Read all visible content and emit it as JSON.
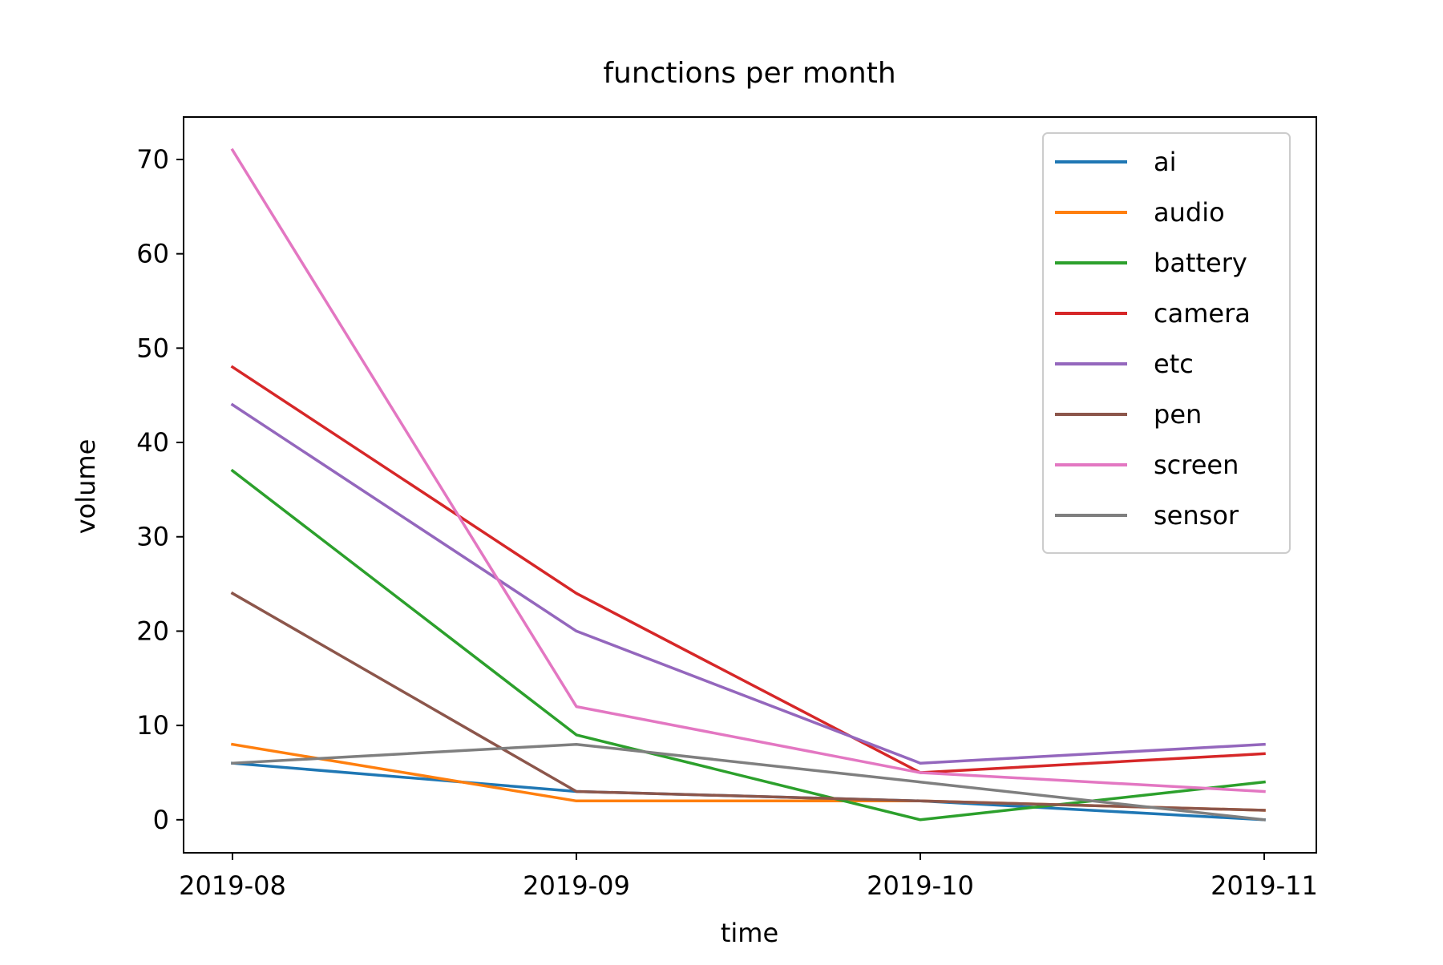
{
  "chart_data": {
    "type": "line",
    "title": "functions per month",
    "xlabel": "time",
    "ylabel": "volume",
    "x": [
      "2019-08",
      "2019-09",
      "2019-10",
      "2019-11"
    ],
    "ylim": [
      -3.5,
      74.5
    ],
    "yticks": [
      0,
      10,
      20,
      30,
      40,
      50,
      60,
      70
    ],
    "grid": false,
    "legend_position": "top-right",
    "series": [
      {
        "name": "ai",
        "color": "#1f77b4",
        "values": [
          6,
          3,
          2,
          0
        ]
      },
      {
        "name": "audio",
        "color": "#ff7f0e",
        "values": [
          8,
          2,
          2,
          1
        ]
      },
      {
        "name": "battery",
        "color": "#2ca02c",
        "values": [
          37,
          9,
          0,
          4
        ]
      },
      {
        "name": "camera",
        "color": "#d62728",
        "values": [
          48,
          24,
          5,
          7
        ]
      },
      {
        "name": "etc",
        "color": "#9467bd",
        "values": [
          44,
          20,
          6,
          8
        ]
      },
      {
        "name": "pen",
        "color": "#8c564b",
        "values": [
          24,
          3,
          2,
          1
        ]
      },
      {
        "name": "screen",
        "color": "#e377c2",
        "values": [
          71,
          12,
          5,
          3
        ]
      },
      {
        "name": "sensor",
        "color": "#7f7f7f",
        "values": [
          6,
          8,
          4,
          0
        ]
      }
    ]
  }
}
